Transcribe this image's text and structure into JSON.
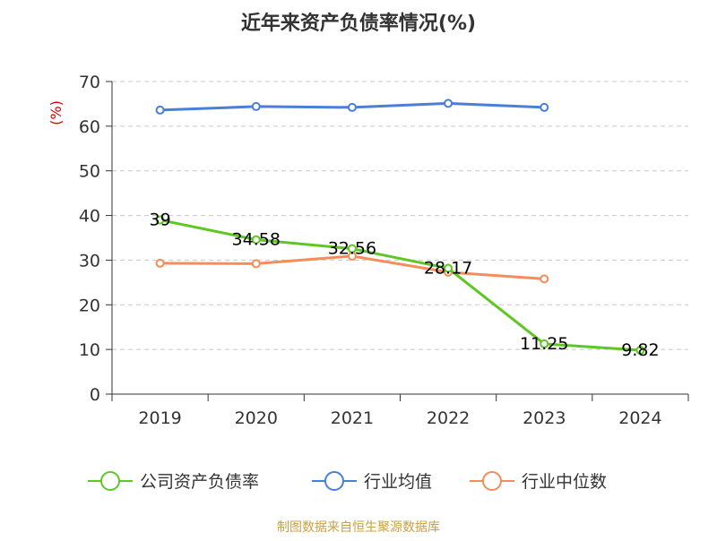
{
  "chart_data": {
    "type": "line",
    "title": "近年来资产负债率情况(%)",
    "ylabel": "(%)",
    "xlabel": "",
    "categories": [
      "2019",
      "2020",
      "2021",
      "2022",
      "2023",
      "2024"
    ],
    "ylim": [
      0,
      70
    ],
    "yticks": [
      0,
      10,
      20,
      30,
      40,
      50,
      60,
      70
    ],
    "grid": true,
    "legend_position": "bottom",
    "series": [
      {
        "name": "公司资产负债率",
        "color": "#5ec723",
        "values": [
          39,
          34.58,
          32.56,
          28.17,
          11.25,
          9.82
        ],
        "labels": [
          "39",
          "34.58",
          "32.56",
          "28.17",
          "11.25",
          "9.82"
        ]
      },
      {
        "name": "行业均值",
        "color": "#4a7fd8",
        "values": [
          63.6,
          64.4,
          64.2,
          65.1,
          64.2,
          null
        ]
      },
      {
        "name": "行业中位数",
        "color": "#f58c5a",
        "values": [
          29.3,
          29.2,
          30.9,
          27.3,
          25.8,
          null
        ]
      }
    ],
    "source": "制图数据来自恒生聚源数据库"
  }
}
